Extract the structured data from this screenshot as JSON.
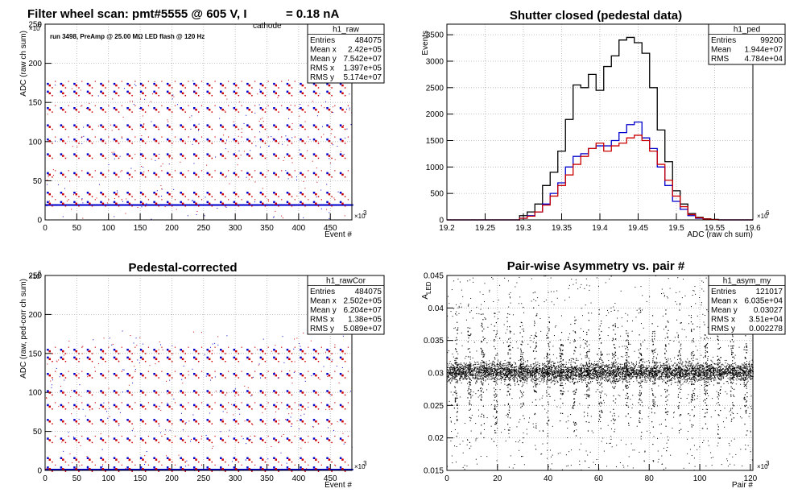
{
  "colors": {
    "blue": "#0000cc",
    "red": "#cc0000",
    "black": "#000000",
    "grid": "#b0b0b0"
  },
  "chart_data": [
    {
      "id": "raw",
      "type": "scatter",
      "title": "Filter wheel scan: pmt#5555 @   605 V, I",
      "title_sub": "cathode",
      "title_tail": "= 0.18 nA",
      "annotation": "run 3498, PreAmp @ 25.00 MΩ LED flash @  120 Hz",
      "xlabel": "Event #",
      "ylabel": "ADC (raw ch sum)",
      "x_multiplier": "×10",
      "x_multiplier_exp": "3",
      "y_multiplier": "×10",
      "y_multiplier_exp": "6",
      "xlim": [
        0,
        484
      ],
      "ylim": [
        0,
        250
      ],
      "xticks": [
        "0",
        "50",
        "100",
        "150",
        "200",
        "250",
        "300",
        "350",
        "400",
        "450"
      ],
      "yticks": [
        "0",
        "50",
        "100",
        "150",
        "200",
        "250"
      ],
      "grid": true,
      "stats": {
        "name": "h1_raw",
        "rows": [
          [
            "Entries",
            "484075"
          ],
          [
            "Mean x",
            "2.42e+05"
          ],
          [
            "Mean y",
            "7.542e+07"
          ],
          [
            "RMS x",
            "1.397e+05"
          ],
          [
            "RMS y",
            "5.174e+07"
          ]
        ]
      },
      "pattern": {
        "period": 21,
        "start": 3,
        "levels": [
          21,
          33,
          58,
          82,
          101,
          119,
          141,
          162,
          172
        ],
        "baseline": 19
      }
    },
    {
      "id": "ped",
      "type": "histogram",
      "title": "Shutter closed (pedestal data)",
      "xlabel": "ADC (raw ch sum)",
      "ylabel": "Events",
      "x_multiplier": "×10",
      "x_multiplier_exp": "6",
      "xlim": [
        19.2,
        19.6
      ],
      "ylim": [
        0,
        3700
      ],
      "xticks": [
        "19.2",
        "19.25",
        "19.3",
        "19.35",
        "19.4",
        "19.45",
        "19.5",
        "19.55",
        "19.6"
      ],
      "yticks": [
        "0",
        "500",
        "1000",
        "1500",
        "2000",
        "2500",
        "3000",
        "3500"
      ],
      "grid": true,
      "stats": {
        "name": "h1_ped",
        "rows": [
          [
            "Entries",
            "99200"
          ],
          [
            "Mean",
            "1.944e+07"
          ],
          [
            "RMS",
            "4.784e+04"
          ]
        ]
      },
      "x": [
        19.3,
        19.31,
        19.32,
        19.33,
        19.34,
        19.35,
        19.36,
        19.37,
        19.38,
        19.39,
        19.4,
        19.41,
        19.42,
        19.43,
        19.44,
        19.45,
        19.46,
        19.47,
        19.48,
        19.49,
        19.5,
        19.51,
        19.52,
        19.53,
        19.54,
        19.55
      ],
      "series": [
        {
          "color": "black",
          "values": [
            80,
            150,
            300,
            650,
            900,
            1300,
            1900,
            2550,
            2500,
            2750,
            2450,
            2900,
            3100,
            3400,
            3450,
            3350,
            3150,
            2500,
            1700,
            1100,
            550,
            300,
            120,
            50,
            20,
            10
          ]
        },
        {
          "color": "blue",
          "values": [
            30,
            80,
            150,
            300,
            500,
            700,
            1000,
            1200,
            1250,
            1350,
            1400,
            1400,
            1500,
            1650,
            1800,
            1850,
            1550,
            1350,
            1000,
            650,
            350,
            200,
            80,
            30,
            10,
            5
          ]
        },
        {
          "color": "red",
          "values": [
            30,
            70,
            150,
            280,
            450,
            650,
            850,
            1050,
            1200,
            1350,
            1450,
            1300,
            1400,
            1450,
            1550,
            1600,
            1500,
            1300,
            1050,
            750,
            450,
            250,
            100,
            40,
            15,
            5
          ]
        }
      ]
    },
    {
      "id": "rawcor",
      "type": "scatter",
      "title": "Pedestal-corrected",
      "xlabel": "Event #",
      "ylabel": "ADC (raw, ped-corr ch sum)",
      "x_multiplier": "×10",
      "x_multiplier_exp": "3",
      "y_multiplier": "×10",
      "y_multiplier_exp": "6",
      "xlim": [
        0,
        484
      ],
      "ylim": [
        0,
        250
      ],
      "xticks": [
        "0",
        "50",
        "100",
        "150",
        "200",
        "250",
        "300",
        "350",
        "400",
        "450"
      ],
      "yticks": [
        "0",
        "50",
        "100",
        "150",
        "200",
        "250"
      ],
      "grid": true,
      "stats": {
        "name": "h1_rawCor",
        "rows": [
          [
            "Entries",
            "484075"
          ],
          [
            "Mean x",
            "2.502e+05"
          ],
          [
            "Mean y",
            "6.204e+07"
          ],
          [
            "RMS x",
            "1.38e+05"
          ],
          [
            "RMS y",
            "5.089e+07"
          ]
        ]
      },
      "pattern": {
        "period": 21,
        "start": 3,
        "levels": [
          2,
          14,
          39,
          63,
          82,
          100,
          122,
          143,
          153
        ],
        "baseline": 1
      }
    },
    {
      "id": "asym",
      "type": "scatter",
      "title": "Pair-wise Asymmetry vs. pair #",
      "xlabel": "Pair #",
      "ylabel": "A",
      "ylabel_sub": "LED",
      "x_multiplier": "×10",
      "x_multiplier_exp": "3",
      "xlim": [
        0,
        121
      ],
      "ylim": [
        0.015,
        0.045
      ],
      "xticks": [
        "0",
        "20",
        "40",
        "60",
        "80",
        "100",
        "120"
      ],
      "yticks": [
        "0.015",
        "0.02",
        "0.025",
        "0.03",
        "0.035",
        "0.04",
        "0.045"
      ],
      "grid": true,
      "stats": {
        "name": "h1_asym_my",
        "rows": [
          [
            "Entries",
            "121017"
          ],
          [
            "Mean x",
            "6.035e+04"
          ],
          [
            "Mean y",
            "0.03027"
          ],
          [
            "RMS x",
            "3.51e+04"
          ],
          [
            "RMS y",
            "0.002278"
          ]
        ]
      },
      "band": {
        "center": 0.0302,
        "width": 0.0012
      },
      "spikes": [
        3.5,
        8.7,
        13.9,
        19.1,
        24.3,
        29.5,
        34.7,
        39.9,
        45.1,
        50.3,
        55.5,
        60.7,
        65.9,
        71.1,
        76.3,
        81.5,
        86.7,
        91.9,
        97.1,
        102.3,
        107.5,
        112.7,
        117.9
      ]
    }
  ]
}
